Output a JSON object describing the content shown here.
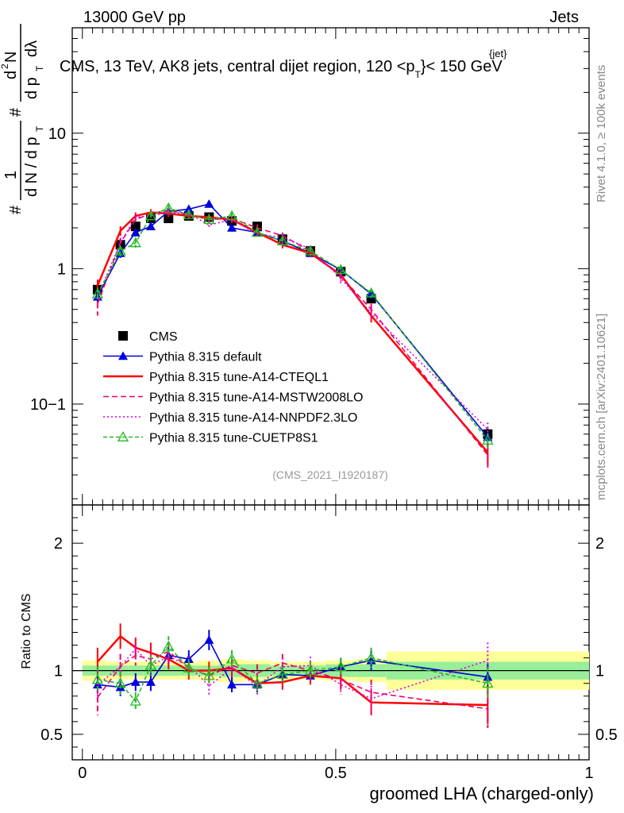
{
  "header": {
    "left": "13000 GeV pp",
    "right": "Jets",
    "title_main": "CMS, 13 TeV, AK8 jets, central dijet region, 120 <p",
    "title_sub": "T",
    "title_sup": "{jet}",
    "title_end": "}< 150 GeV"
  },
  "side_labels": {
    "rivet": "Rivet 4.1.0, ≥ 100k events",
    "mcplots": "mcplots.cern.ch [arXiv:2401.10621]"
  },
  "axes": {
    "y_top_label": {
      "hash1": "#",
      "one": "1",
      "denom": "d N / d p",
      "sub_t": "T",
      "hash2": "#",
      "num_top": "d",
      "sup2": "2",
      "num_N": "N",
      "dpT": "d p",
      "sub_t2": "T",
      "dlam": "dλ"
    },
    "y_bottom_label": "Ratio to CMS",
    "x_label": "groomed LHA (charged-only)",
    "reference": "(CMS_2021_I1920187)"
  },
  "chart_data": [
    {
      "type": "line",
      "panel": "main",
      "yscale": "log",
      "ylim": [
        0.018,
        60
      ],
      "xlim": [
        -0.02,
        1.0
      ],
      "y_ticks": [
        {
          "v": 0.1,
          "label": "10−1"
        },
        {
          "v": 1,
          "label": "1"
        },
        {
          "v": 10,
          "label": "10"
        }
      ],
      "x": [
        0.03,
        0.075,
        0.105,
        0.135,
        0.17,
        0.21,
        0.25,
        0.295,
        0.345,
        0.395,
        0.45,
        0.51,
        0.57,
        0.8
      ],
      "series": [
        {
          "name": "CMS",
          "color": "#000000",
          "marker": "square",
          "dash": "",
          "values": [
            0.7,
            1.5,
            2.05,
            2.35,
            2.35,
            2.45,
            2.4,
            2.25,
            2.05,
            1.65,
            1.35,
            0.95,
            0.6,
            0.06
          ],
          "err": [
            0.06,
            0.1,
            0.12,
            0.12,
            0.12,
            0.12,
            0.12,
            0.12,
            0.1,
            0.08,
            0.07,
            0.06,
            0.04,
            0.006
          ]
        },
        {
          "name": "Pythia 8.315 default",
          "color": "#0000dd",
          "marker": "triangle",
          "dash": "",
          "values": [
            0.62,
            1.3,
            1.85,
            2.05,
            2.65,
            2.75,
            3.0,
            2.0,
            1.85,
            1.6,
            1.3,
            0.98,
            0.65,
            0.057
          ],
          "err": [
            0.05,
            0.1,
            0.12,
            0.12,
            0.15,
            0.15,
            0.18,
            0.12,
            0.1,
            0.09,
            0.08,
            0.07,
            0.05,
            0.006
          ]
        },
        {
          "name": "Pythia 8.315 tune-A14-CTEQL1",
          "color": "#ff0000",
          "marker": "",
          "dash": "",
          "values": [
            0.75,
            1.9,
            2.45,
            2.6,
            2.55,
            2.45,
            2.4,
            2.3,
            1.85,
            1.5,
            1.3,
            0.9,
            0.45,
            0.044
          ],
          "err": [
            0.08,
            0.15,
            0.15,
            0.15,
            0.15,
            0.14,
            0.14,
            0.13,
            0.1,
            0.09,
            0.08,
            0.07,
            0.05,
            0.008
          ]
        },
        {
          "name": "Pythia 8.315 tune-A14-MSTW2008LO",
          "color": "#ee0066",
          "marker": "",
          "dash": "7,4",
          "values": [
            0.55,
            1.55,
            2.3,
            2.55,
            2.7,
            2.5,
            2.3,
            2.35,
            2.0,
            1.75,
            1.35,
            0.88,
            0.5,
            0.042
          ],
          "err": [
            0.1,
            0.14,
            0.16,
            0.16,
            0.16,
            0.15,
            0.14,
            0.14,
            0.12,
            0.1,
            0.08,
            0.07,
            0.05,
            0.008
          ]
        },
        {
          "name": "Pythia 8.315 tune-A14-NNPDF2.3LO",
          "color": "#dd00dd",
          "marker": "",
          "dash": "2,3",
          "values": [
            0.62,
            1.55,
            2.4,
            2.45,
            2.6,
            2.55,
            2.1,
            2.3,
            1.8,
            1.7,
            1.4,
            0.85,
            0.47,
            0.065
          ],
          "err": [
            0.08,
            0.14,
            0.16,
            0.16,
            0.16,
            0.15,
            0.14,
            0.14,
            0.11,
            0.1,
            0.08,
            0.07,
            0.05,
            0.008
          ]
        },
        {
          "name": "Pythia 8.315 tune-CUETP8S1",
          "color": "#22bb22",
          "marker": "triangle-open",
          "dash": "5,3",
          "values": [
            0.65,
            1.35,
            1.55,
            2.45,
            2.8,
            2.5,
            2.3,
            2.45,
            1.85,
            1.6,
            1.35,
            0.98,
            0.66,
            0.054
          ],
          "err": [
            0.07,
            0.12,
            0.12,
            0.15,
            0.16,
            0.15,
            0.14,
            0.14,
            0.11,
            0.1,
            0.08,
            0.07,
            0.05,
            0.007
          ]
        }
      ]
    },
    {
      "type": "line",
      "panel": "ratio",
      "ylim": [
        0.3,
        2.3
      ],
      "xlim": [
        -0.02,
        1.0
      ],
      "y_ticks": [
        {
          "v": 0.5,
          "label": "0.5"
        },
        {
          "v": 1,
          "label": "1"
        },
        {
          "v": 2,
          "label": "2"
        }
      ],
      "x_ticks": [
        {
          "v": 0,
          "label": "0"
        },
        {
          "v": 0.5,
          "label": "0.5"
        },
        {
          "v": 1,
          "label": "1"
        }
      ],
      "bands": [
        {
          "x0": 0.0,
          "x1": 0.05,
          "inner": [
            0.96,
            1.04
          ],
          "outer": [
            0.92,
            1.08
          ]
        },
        {
          "x0": 0.05,
          "x1": 0.09,
          "inner": [
            0.96,
            1.04
          ],
          "outer": [
            0.93,
            1.07
          ]
        },
        {
          "x0": 0.09,
          "x1": 0.12,
          "inner": [
            0.96,
            1.04
          ],
          "outer": [
            0.93,
            1.07
          ]
        },
        {
          "x0": 0.12,
          "x1": 0.15,
          "inner": [
            0.96,
            1.04
          ],
          "outer": [
            0.93,
            1.07
          ]
        },
        {
          "x0": 0.15,
          "x1": 0.19,
          "inner": [
            0.96,
            1.04
          ],
          "outer": [
            0.93,
            1.07
          ]
        },
        {
          "x0": 0.19,
          "x1": 0.23,
          "inner": [
            0.96,
            1.04
          ],
          "outer": [
            0.93,
            1.07
          ]
        },
        {
          "x0": 0.23,
          "x1": 0.27,
          "inner": [
            0.96,
            1.04
          ],
          "outer": [
            0.92,
            1.08
          ]
        },
        {
          "x0": 0.27,
          "x1": 0.32,
          "inner": [
            0.95,
            1.05
          ],
          "outer": [
            0.91,
            1.09
          ]
        },
        {
          "x0": 0.32,
          "x1": 0.37,
          "inner": [
            0.95,
            1.05
          ],
          "outer": [
            0.92,
            1.08
          ]
        },
        {
          "x0": 0.37,
          "x1": 0.42,
          "inner": [
            0.96,
            1.04
          ],
          "outer": [
            0.93,
            1.07
          ]
        },
        {
          "x0": 0.42,
          "x1": 0.48,
          "inner": [
            0.96,
            1.04
          ],
          "outer": [
            0.93,
            1.07
          ]
        },
        {
          "x0": 0.48,
          "x1": 0.54,
          "inner": [
            0.95,
            1.05
          ],
          "outer": [
            0.92,
            1.08
          ]
        },
        {
          "x0": 0.54,
          "x1": 0.6,
          "inner": [
            0.95,
            1.05
          ],
          "outer": [
            0.91,
            1.09
          ]
        },
        {
          "x0": 0.6,
          "x1": 1.0,
          "inner": [
            0.93,
            1.07
          ],
          "outer": [
            0.85,
            1.15
          ]
        }
      ],
      "x": [
        0.03,
        0.075,
        0.105,
        0.135,
        0.17,
        0.21,
        0.25,
        0.295,
        0.345,
        0.395,
        0.45,
        0.51,
        0.57,
        0.8
      ],
      "series": [
        {
          "name": "Pythia 8.315 default",
          "color": "#0000dd",
          "marker": "triangle",
          "dash": "",
          "values": [
            0.89,
            0.87,
            0.91,
            0.91,
            1.12,
            1.09,
            1.24,
            0.89,
            0.89,
            0.97,
            0.96,
            1.03,
            1.08,
            0.95
          ],
          "err": [
            0.07,
            0.07,
            0.07,
            0.07,
            0.07,
            0.07,
            0.08,
            0.06,
            0.06,
            0.06,
            0.06,
            0.07,
            0.08,
            0.1
          ]
        },
        {
          "name": "Pythia 8.315 tune-A14-CTEQL1",
          "color": "#ff0000",
          "marker": "",
          "dash": "",
          "values": [
            1.07,
            1.27,
            1.18,
            1.14,
            1.09,
            1.0,
            1.0,
            1.02,
            0.9,
            0.91,
            0.96,
            0.94,
            0.75,
            0.73
          ],
          "err": [
            0.11,
            0.1,
            0.08,
            0.08,
            0.08,
            0.07,
            0.07,
            0.07,
            0.06,
            0.06,
            0.07,
            0.08,
            0.1,
            0.15
          ]
        },
        {
          "name": "Pythia 8.315 tune-A14-MSTW2008LO",
          "color": "#ee0066",
          "marker": "",
          "dash": "7,4",
          "values": [
            0.79,
            1.03,
            1.12,
            1.09,
            1.15,
            1.02,
            0.96,
            1.04,
            0.98,
            1.06,
            1.0,
            0.93,
            0.83,
            0.7
          ],
          "err": [
            0.14,
            0.1,
            0.08,
            0.08,
            0.08,
            0.07,
            0.07,
            0.07,
            0.07,
            0.07,
            0.07,
            0.08,
            0.1,
            0.15
          ]
        },
        {
          "name": "Pythia 8.315 tune-A14-NNPDF2.3LO",
          "color": "#dd00dd",
          "marker": "",
          "dash": "2,3",
          "values": [
            0.89,
            1.03,
            1.17,
            1.04,
            1.11,
            1.04,
            0.88,
            1.02,
            0.88,
            1.03,
            1.04,
            0.89,
            0.78,
            1.08
          ],
          "err": [
            0.11,
            0.1,
            0.08,
            0.08,
            0.08,
            0.07,
            0.07,
            0.07,
            0.07,
            0.07,
            0.07,
            0.08,
            0.1,
            0.14
          ]
        },
        {
          "name": "Pythia 8.315 tune-CUETP8S1",
          "color": "#22bb22",
          "marker": "triangle-open",
          "dash": "5,3",
          "values": [
            0.93,
            0.9,
            0.76,
            1.04,
            1.19,
            1.02,
            0.96,
            1.09,
            0.9,
            0.97,
            1.0,
            1.03,
            1.1,
            0.9
          ],
          "err": [
            0.1,
            0.09,
            0.07,
            0.08,
            0.08,
            0.07,
            0.07,
            0.07,
            0.06,
            0.06,
            0.07,
            0.07,
            0.08,
            0.12
          ]
        }
      ]
    }
  ]
}
